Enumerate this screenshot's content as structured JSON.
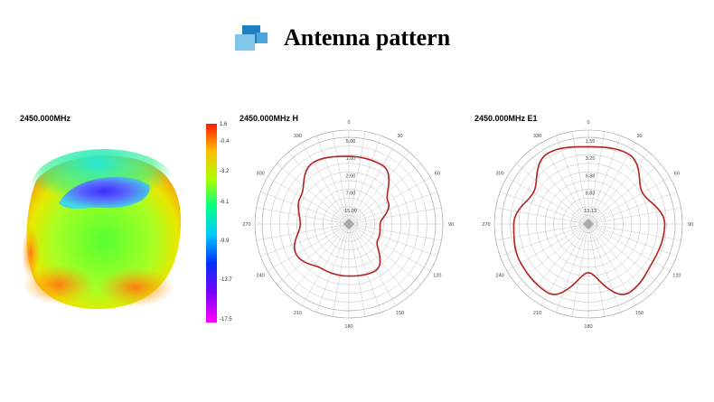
{
  "header": {
    "title": "Antenna pattern"
  },
  "colors": {
    "trace": "#b32222",
    "grid": "#bdbdbd",
    "logo_dark": "#1f7fc3",
    "logo_light": "#7fc6ea"
  },
  "colorbar": {
    "ticks": [
      "1.6",
      "-0.4",
      "-3.2",
      "-6.1",
      "-9.9",
      "-13.7",
      "-17.5"
    ],
    "gradient": [
      "#ff1a00",
      "#ffbf00",
      "#aaff00",
      "#00ff88",
      "#00c8ff",
      "#0033ff",
      "#7a00ff",
      "#ff00ff"
    ]
  },
  "chart_data": [
    {
      "type": "surface3d",
      "title": "2450.000MHz",
      "colorbar_range": [
        -17.5,
        1.6
      ]
    },
    {
      "type": "polar",
      "title": "2450.000MHz  H",
      "angle_labels": [
        "0",
        "30",
        "60",
        "90",
        "120",
        "150",
        "180",
        "210",
        "240",
        "270",
        "300",
        "330"
      ],
      "radial_labels": [
        "5.00",
        "1.00",
        "2.00",
        "7.00",
        "15.00"
      ],
      "angles": [
        0,
        30,
        60,
        90,
        120,
        150,
        180,
        210,
        240,
        270,
        300,
        330,
        360
      ],
      "values": [
        0.78,
        0.78,
        0.52,
        0.36,
        0.38,
        0.62,
        0.6,
        0.6,
        0.7,
        0.56,
        0.64,
        0.82,
        0.78
      ]
    },
    {
      "type": "polar",
      "title": "2450.000MHz  E1",
      "angle_labels": [
        "0",
        "30",
        "60",
        "90",
        "120",
        "150",
        "180",
        "210",
        "240",
        "270",
        "300",
        "330"
      ],
      "radial_labels": [
        "1.55",
        "3.25",
        "6.88",
        "8.83",
        "13.13"
      ],
      "angles": [
        0,
        30,
        60,
        90,
        120,
        150,
        180,
        210,
        240,
        270,
        300,
        330,
        360
      ],
      "values": [
        0.89,
        0.93,
        0.72,
        0.88,
        0.86,
        0.92,
        0.56,
        0.92,
        0.9,
        0.86,
        0.73,
        0.94,
        0.89
      ]
    }
  ]
}
